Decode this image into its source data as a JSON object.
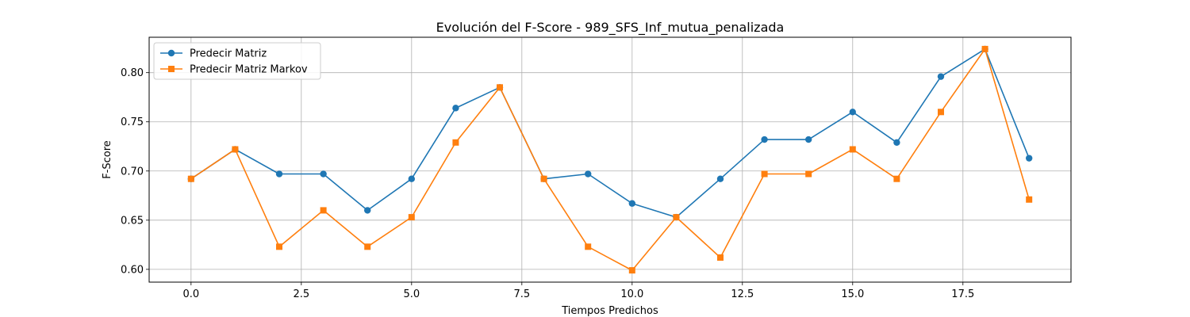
{
  "chart_data": {
    "type": "line",
    "title": "Evolución del F-Score - 989_SFS_Inf_mutua_penalizada",
    "xlabel": "Tiempos Predichos",
    "ylabel": "F-Score",
    "xlim": [
      -0.95,
      19.95
    ],
    "ylim": [
      0.587,
      0.836
    ],
    "xticks": [
      0.0,
      2.5,
      5.0,
      7.5,
      10.0,
      12.5,
      15.0,
      17.5
    ],
    "xtick_labels": [
      "0.0",
      "2.5",
      "5.0",
      "7.5",
      "10.0",
      "12.5",
      "15.0",
      "17.5"
    ],
    "yticks": [
      0.6,
      0.65,
      0.7,
      0.75,
      0.8
    ],
    "ytick_labels": [
      "0.60",
      "0.65",
      "0.70",
      "0.75",
      "0.80"
    ],
    "grid": true,
    "legend_position": "top-left",
    "x": [
      0,
      1,
      2,
      3,
      4,
      5,
      6,
      7,
      8,
      9,
      10,
      11,
      12,
      13,
      14,
      15,
      16,
      17,
      18,
      19
    ],
    "series": [
      {
        "name": "Predecir Matriz",
        "color": "#1f77b4",
        "marker": "circle",
        "values": [
          0.692,
          0.722,
          0.697,
          0.697,
          0.66,
          0.692,
          0.764,
          0.785,
          0.692,
          0.697,
          0.667,
          0.653,
          0.692,
          0.732,
          0.732,
          0.76,
          0.729,
          0.796,
          0.824,
          0.713
        ]
      },
      {
        "name": "Predecir Matriz Markov",
        "color": "#ff7f0e",
        "marker": "square",
        "values": [
          0.692,
          0.722,
          0.623,
          0.66,
          0.623,
          0.653,
          0.729,
          0.785,
          0.692,
          0.623,
          0.599,
          0.653,
          0.612,
          0.697,
          0.697,
          0.722,
          0.692,
          0.76,
          0.824,
          0.671
        ]
      }
    ]
  }
}
